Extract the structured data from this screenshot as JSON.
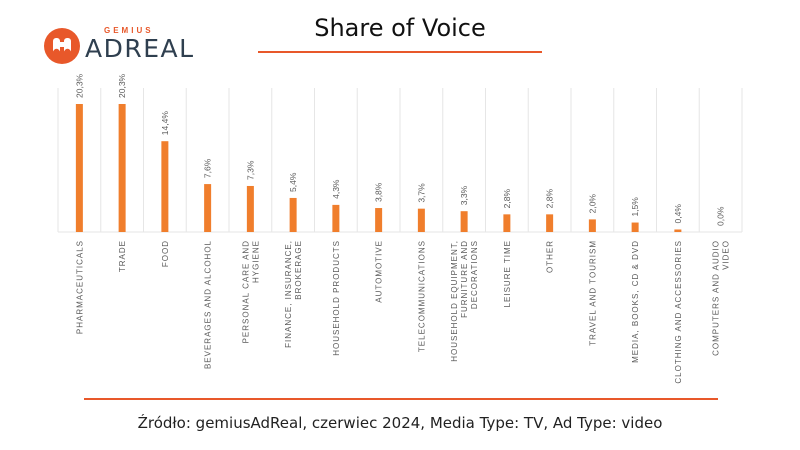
{
  "logo": {
    "top_word": "GEMIUS",
    "main_word": "ADREAL"
  },
  "title": "Share of Voice",
  "footer": "Źródło: gemiusAdReal, czerwiec 2024, Media Type: TV, Ad Type: video",
  "colors": {
    "accent": "#e8582a",
    "bar": "#f07e2c",
    "grid": "#e6e6e6",
    "text": "#595959"
  },
  "chart_data": {
    "type": "bar",
    "categories": [
      "PHARMACEUTICALS",
      "TRADE",
      "FOOD",
      "BEVERAGES AND ALCOHOL",
      "PERSONAL CARE AND HYGIENE",
      "FINANCE, INSURANCE, BROKERAGE",
      "HOUSEHOLD PRODUCTS",
      "AUTOMOTIVE",
      "TELECOMMUNICATIONS",
      "HOUSEHOLD EQUIPMENT, FURNITURE AND DECORATIONS",
      "LEISURE TIME",
      "OTHER",
      "TRAVEL AND TOURISM",
      "MEDIA, BOOKS, CD & DVD",
      "CLOTHING AND ACCESSORIES",
      "COMPUTERS AND AUDIO VIDEO"
    ],
    "category_lines": [
      [
        "PHARMACEUTICALS"
      ],
      [
        "TRADE"
      ],
      [
        "FOOD"
      ],
      [
        "BEVERAGES AND ALCOHOL"
      ],
      [
        "PERSONAL CARE AND",
        "HYGIENE"
      ],
      [
        "FINANCE, INSURANCE,",
        "BROKERAGE"
      ],
      [
        "HOUSEHOLD PRODUCTS"
      ],
      [
        "AUTOMOTIVE"
      ],
      [
        "TELECOMMUNICATIONS"
      ],
      [
        "HOUSEHOLD EQUIPMENT,",
        "FURNITURE AND",
        "DECORATIONS"
      ],
      [
        "LEISURE TIME"
      ],
      [
        "OTHER"
      ],
      [
        "TRAVEL AND TOURISM"
      ],
      [
        "MEDIA, BOOKS, CD & DVD"
      ],
      [
        "CLOTHING AND ACCESSORIES"
      ],
      [
        "COMPUTERS AND AUDIO",
        "VIDEO"
      ]
    ],
    "values": [
      20.3,
      20.3,
      14.4,
      7.6,
      7.3,
      5.4,
      4.3,
      3.8,
      3.7,
      3.3,
      2.8,
      2.8,
      2.0,
      1.5,
      0.4,
      0.0
    ],
    "value_labels": [
      "20,3%",
      "20,3%",
      "14,4%",
      "7,6%",
      "7,3%",
      "5,4%",
      "4,3%",
      "3,8%",
      "3,7%",
      "3,3%",
      "2,8%",
      "2,8%",
      "2,0%",
      "1,5%",
      "0,4%",
      "0,0%"
    ],
    "unit": "%",
    "ylim": [
      0,
      22
    ],
    "grid": "vertical separators between categories",
    "legend": "none"
  }
}
